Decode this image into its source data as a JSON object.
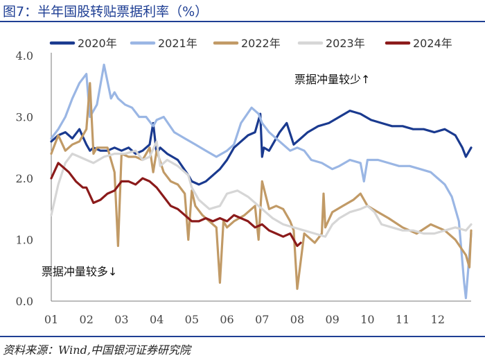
{
  "header": {
    "title": "图7：半年国股转贴票据利率（%）"
  },
  "footer": {
    "source": "资料来源：Wind,中国银河证券研究院"
  },
  "chart_data": {
    "type": "line",
    "title": "半年国股转贴票据利率（%）",
    "xlabel": "",
    "ylabel": "%",
    "x_tick_labels": [
      "01",
      "02",
      "03",
      "04",
      "05",
      "06",
      "07",
      "08",
      "09",
      "10",
      "11",
      "12"
    ],
    "xlim": [
      1,
      12.95
    ],
    "ylim": [
      0,
      4.0
    ],
    "y_tick_labels": [
      "0.0",
      "1.0",
      "2.0",
      "3.0",
      "4.0"
    ],
    "y_ticks": [
      0,
      1,
      2,
      3,
      4
    ],
    "grid": false,
    "legend_position": "top",
    "annotations": [
      {
        "text": "票据冲量较少↑",
        "x": 9.0,
        "y": 3.55
      },
      {
        "text": "票据冲量较多↓",
        "x": 1.8,
        "y": 0.42
      }
    ],
    "series": [
      {
        "name": "2020年",
        "color": "#1a3a8f",
        "x": [
          1.0,
          1.2,
          1.4,
          1.6,
          1.8,
          2.0,
          2.1,
          2.2,
          2.4,
          2.6,
          2.8,
          3.0,
          3.2,
          3.4,
          3.6,
          3.8,
          3.9,
          4.0,
          4.1,
          4.3,
          4.6,
          4.9,
          5.0,
          5.2,
          5.4,
          5.6,
          5.8,
          6.0,
          6.2,
          6.4,
          6.6,
          6.8,
          6.95,
          7.0,
          7.05,
          7.2,
          7.3,
          7.5,
          7.7,
          7.9,
          8.1,
          8.3,
          8.6,
          8.9,
          9.2,
          9.5,
          9.8,
          10.1,
          10.4,
          10.7,
          11.0,
          11.3,
          11.6,
          11.9,
          12.2,
          12.5,
          12.7,
          12.8,
          12.95
        ],
        "values": [
          2.6,
          2.7,
          2.75,
          2.65,
          2.8,
          2.55,
          2.45,
          2.5,
          2.45,
          2.45,
          2.5,
          2.45,
          2.5,
          2.4,
          2.45,
          2.55,
          2.9,
          2.4,
          2.5,
          2.4,
          2.3,
          2.05,
          1.95,
          1.9,
          1.95,
          2.05,
          2.15,
          2.3,
          2.5,
          2.6,
          2.7,
          2.75,
          3.05,
          2.35,
          2.5,
          2.45,
          2.55,
          2.75,
          2.9,
          2.55,
          2.65,
          2.75,
          2.85,
          2.9,
          3.0,
          3.1,
          3.05,
          2.95,
          2.9,
          2.85,
          2.85,
          2.8,
          2.8,
          2.75,
          2.8,
          2.7,
          2.5,
          2.35,
          2.5
        ]
      },
      {
        "name": "2021年",
        "color": "#9ab6e4",
        "x": [
          1.0,
          1.2,
          1.4,
          1.6,
          1.8,
          2.0,
          2.1,
          2.3,
          2.5,
          2.7,
          2.8,
          2.9,
          3.1,
          3.3,
          3.5,
          3.7,
          3.9,
          4.0,
          4.2,
          4.5,
          4.8,
          5.1,
          5.4,
          5.7,
          6.0,
          6.2,
          6.4,
          6.7,
          6.9,
          7.0,
          7.2,
          7.5,
          7.8,
          8.0,
          8.2,
          8.4,
          8.7,
          9.0,
          9.2,
          9.5,
          9.8,
          9.9,
          10.0,
          10.3,
          10.6,
          10.9,
          11.2,
          11.5,
          11.8,
          12.0,
          12.2,
          12.4,
          12.6,
          12.75,
          12.8,
          12.95
        ],
        "values": [
          2.65,
          2.8,
          3.0,
          3.3,
          3.55,
          3.7,
          3.0,
          3.2,
          3.85,
          3.3,
          3.4,
          3.3,
          3.2,
          3.15,
          3.0,
          3.0,
          2.85,
          2.95,
          3.0,
          2.75,
          2.65,
          2.55,
          2.45,
          2.35,
          2.45,
          2.55,
          2.9,
          3.15,
          3.05,
          2.9,
          2.75,
          2.6,
          2.45,
          2.5,
          2.45,
          2.3,
          2.25,
          2.15,
          2.2,
          2.3,
          2.25,
          1.95,
          2.3,
          2.3,
          2.25,
          2.2,
          2.2,
          2.15,
          2.1,
          2.0,
          1.9,
          1.7,
          1.3,
          0.3,
          0.05,
          1.1
        ]
      },
      {
        "name": "2022年",
        "color": "#c19a66",
        "x": [
          1.0,
          1.2,
          1.4,
          1.6,
          1.8,
          2.0,
          2.1,
          2.2,
          2.3,
          2.6,
          2.8,
          2.9,
          3.0,
          3.2,
          3.4,
          3.6,
          3.8,
          3.9,
          4.0,
          4.2,
          4.4,
          4.6,
          4.8,
          4.9,
          5.0,
          5.1,
          5.3,
          5.5,
          5.7,
          5.8,
          5.9,
          6.0,
          6.2,
          6.5,
          6.8,
          6.9,
          7.0,
          7.2,
          7.4,
          7.6,
          7.8,
          7.9,
          8.0,
          8.2,
          8.5,
          8.7,
          8.75,
          8.8,
          9.0,
          9.3,
          9.6,
          9.8,
          10.0,
          10.3,
          10.6,
          11.0,
          11.4,
          11.8,
          12.2,
          12.5,
          12.8,
          12.9,
          12.95
        ],
        "values": [
          2.4,
          2.7,
          2.45,
          2.55,
          2.6,
          2.8,
          3.55,
          2.4,
          2.5,
          2.5,
          2.1,
          0.9,
          2.4,
          2.35,
          2.35,
          2.3,
          2.5,
          2.1,
          2.45,
          2.1,
          1.95,
          1.9,
          1.75,
          1.0,
          1.8,
          1.55,
          1.4,
          1.3,
          1.2,
          0.3,
          1.3,
          1.2,
          1.3,
          1.4,
          1.55,
          1.0,
          1.95,
          1.5,
          1.55,
          1.5,
          1.3,
          1.15,
          0.2,
          1.1,
          0.95,
          1.1,
          1.75,
          1.2,
          1.45,
          1.55,
          1.65,
          1.75,
          1.55,
          1.45,
          1.35,
          1.2,
          1.1,
          1.25,
          1.15,
          1.0,
          0.75,
          0.55,
          1.15
        ]
      },
      {
        "name": "2023年",
        "color": "#d6d6d6",
        "x": [
          1.0,
          1.2,
          1.4,
          1.6,
          1.8,
          2.0,
          2.2,
          2.5,
          2.8,
          3.1,
          3.4,
          3.6,
          3.8,
          4.0,
          4.1,
          4.3,
          4.6,
          4.9,
          5.0,
          5.2,
          5.5,
          5.8,
          6.0,
          6.3,
          6.6,
          6.9,
          7.1,
          7.3,
          7.6,
          7.9,
          8.2,
          8.5,
          8.8,
          9.0,
          9.2,
          9.5,
          9.8,
          10.0,
          10.2,
          10.4,
          10.7,
          11.0,
          11.3,
          11.6,
          11.9,
          12.2,
          12.5,
          12.8,
          12.95
        ],
        "values": [
          1.4,
          1.9,
          2.25,
          2.4,
          2.35,
          2.3,
          2.25,
          2.35,
          2.4,
          2.4,
          2.45,
          2.3,
          2.35,
          2.6,
          2.2,
          2.3,
          2.2,
          2.05,
          1.85,
          1.65,
          1.5,
          1.55,
          1.75,
          1.8,
          1.7,
          1.55,
          1.45,
          1.35,
          1.25,
          1.2,
          1.15,
          1.1,
          1.05,
          1.25,
          1.35,
          1.45,
          1.5,
          1.55,
          1.45,
          1.25,
          1.2,
          1.15,
          1.15,
          1.1,
          1.1,
          1.15,
          1.2,
          1.15,
          1.25
        ]
      },
      {
        "name": "2024年",
        "color": "#8b1a1a",
        "x": [
          1.0,
          1.2,
          1.3,
          1.5,
          1.7,
          1.9,
          2.0,
          2.2,
          2.4,
          2.6,
          2.8,
          3.0,
          3.2,
          3.4,
          3.6,
          3.8,
          4.0,
          4.2,
          4.4,
          4.6,
          4.8,
          5.0,
          5.2,
          5.4,
          5.6,
          5.8,
          6.0,
          6.2,
          6.4,
          6.6,
          6.8,
          7.0,
          7.2,
          7.4,
          7.6,
          7.8,
          8.0,
          8.1
        ],
        "values": [
          2.0,
          2.25,
          2.2,
          2.1,
          1.95,
          1.85,
          1.85,
          1.6,
          1.65,
          1.75,
          1.8,
          1.95,
          1.95,
          1.9,
          2.0,
          1.95,
          1.85,
          1.7,
          1.55,
          1.5,
          1.4,
          1.3,
          1.3,
          1.35,
          1.3,
          1.35,
          1.3,
          1.4,
          1.35,
          1.3,
          1.2,
          1.25,
          1.15,
          1.1,
          1.05,
          1.1,
          0.9,
          0.95
        ]
      }
    ]
  }
}
